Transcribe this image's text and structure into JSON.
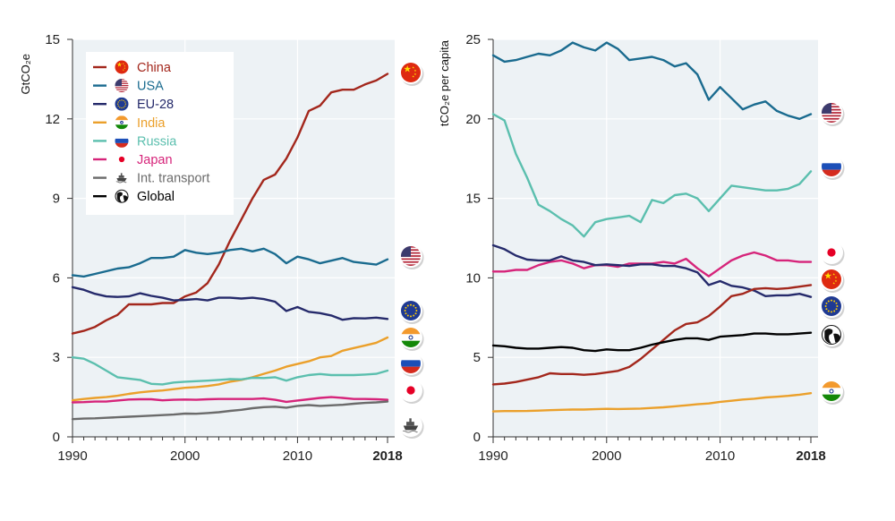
{
  "chart_data": [
    {
      "type": "line",
      "ylabel": "GtCO₂e",
      "ylim": [
        0,
        15
      ],
      "yticks": [
        "0",
        "3",
        "6",
        "9",
        "12",
        "15"
      ],
      "xlim": [
        1990,
        2018
      ],
      "xticks": [
        "1990",
        "2000",
        "2010",
        "2018"
      ],
      "legend": {
        "placement": "top-left"
      },
      "series": [
        {
          "name": "China",
          "color": "#a3271c",
          "icon": "china-flag-icon",
          "x": [
            1990,
            1991,
            1992,
            1993,
            1994,
            1995,
            1996,
            1997,
            1998,
            1999,
            2000,
            2001,
            2002,
            2003,
            2004,
            2005,
            2006,
            2007,
            2008,
            2009,
            2010,
            2011,
            2012,
            2013,
            2014,
            2015,
            2016,
            2017,
            2018
          ],
          "values": [
            3.9,
            4.0,
            4.15,
            4.4,
            4.6,
            5.0,
            5.0,
            5.0,
            5.05,
            5.05,
            5.3,
            5.45,
            5.8,
            6.5,
            7.4,
            8.2,
            9.0,
            9.7,
            9.9,
            10.5,
            11.3,
            12.3,
            12.5,
            13.0,
            13.1,
            13.1,
            13.3,
            13.45,
            13.7
          ]
        },
        {
          "name": "USA",
          "color": "#1a6b8f",
          "icon": "usa-flag-icon",
          "x": [
            1990,
            1991,
            1992,
            1993,
            1994,
            1995,
            1996,
            1997,
            1998,
            1999,
            2000,
            2001,
            2002,
            2003,
            2004,
            2005,
            2006,
            2007,
            2008,
            2009,
            2010,
            2011,
            2012,
            2013,
            2014,
            2015,
            2016,
            2017,
            2018
          ],
          "values": [
            6.1,
            6.05,
            6.15,
            6.25,
            6.35,
            6.4,
            6.55,
            6.75,
            6.75,
            6.8,
            7.05,
            6.95,
            6.9,
            6.95,
            7.05,
            7.1,
            7.0,
            7.1,
            6.9,
            6.55,
            6.8,
            6.7,
            6.55,
            6.65,
            6.75,
            6.6,
            6.55,
            6.5,
            6.7
          ]
        },
        {
          "name": "EU-28",
          "color": "#252a6b",
          "icon": "eu-flag-icon",
          "x": [
            1990,
            1991,
            1992,
            1993,
            1994,
            1995,
            1996,
            1997,
            1998,
            1999,
            2000,
            2001,
            2002,
            2003,
            2004,
            2005,
            2006,
            2007,
            2008,
            2009,
            2010,
            2011,
            2012,
            2013,
            2014,
            2015,
            2016,
            2017,
            2018
          ],
          "values": [
            5.65,
            5.55,
            5.4,
            5.3,
            5.28,
            5.3,
            5.42,
            5.32,
            5.25,
            5.15,
            5.17,
            5.2,
            5.15,
            5.25,
            5.25,
            5.22,
            5.25,
            5.2,
            5.1,
            4.75,
            4.9,
            4.72,
            4.67,
            4.58,
            4.42,
            4.48,
            4.47,
            4.5,
            4.45
          ]
        },
        {
          "name": "India",
          "color": "#eba02b",
          "icon": "india-flag-icon",
          "x": [
            1990,
            1991,
            1992,
            1993,
            1994,
            1995,
            1996,
            1997,
            1998,
            1999,
            2000,
            2001,
            2002,
            2003,
            2004,
            2005,
            2006,
            2007,
            2008,
            2009,
            2010,
            2011,
            2012,
            2013,
            2014,
            2015,
            2016,
            2017,
            2018
          ],
          "values": [
            1.38,
            1.43,
            1.47,
            1.5,
            1.55,
            1.62,
            1.68,
            1.72,
            1.75,
            1.8,
            1.85,
            1.88,
            1.92,
            1.98,
            2.08,
            2.15,
            2.25,
            2.38,
            2.5,
            2.65,
            2.75,
            2.85,
            3.0,
            3.05,
            3.25,
            3.35,
            3.45,
            3.55,
            3.75
          ]
        },
        {
          "name": "Russia",
          "color": "#5bbfae",
          "icon": "russia-flag-icon",
          "x": [
            1990,
            1991,
            1992,
            1993,
            1994,
            1995,
            1996,
            1997,
            1998,
            1999,
            2000,
            2001,
            2002,
            2003,
            2004,
            2005,
            2006,
            2007,
            2008,
            2009,
            2010,
            2011,
            2012,
            2013,
            2014,
            2015,
            2016,
            2017,
            2018
          ],
          "values": [
            3.0,
            2.95,
            2.75,
            2.5,
            2.25,
            2.2,
            2.15,
            2.0,
            1.98,
            2.05,
            2.08,
            2.1,
            2.12,
            2.15,
            2.18,
            2.17,
            2.23,
            2.22,
            2.25,
            2.12,
            2.25,
            2.33,
            2.37,
            2.33,
            2.33,
            2.33,
            2.35,
            2.38,
            2.5
          ]
        },
        {
          "name": "Japan",
          "color": "#d6247a",
          "icon": "japan-flag-icon",
          "x": [
            1990,
            1991,
            1992,
            1993,
            1994,
            1995,
            1996,
            1997,
            1998,
            1999,
            2000,
            2001,
            2002,
            2003,
            2004,
            2005,
            2006,
            2007,
            2008,
            2009,
            2010,
            2011,
            2012,
            2013,
            2014,
            2015,
            2016,
            2017,
            2018
          ],
          "values": [
            1.3,
            1.31,
            1.33,
            1.33,
            1.37,
            1.41,
            1.42,
            1.42,
            1.38,
            1.4,
            1.41,
            1.4,
            1.42,
            1.43,
            1.43,
            1.43,
            1.43,
            1.45,
            1.4,
            1.32,
            1.37,
            1.42,
            1.47,
            1.5,
            1.47,
            1.43,
            1.43,
            1.42,
            1.4
          ]
        },
        {
          "name": "Int. transport",
          "color": "#6b6b6b",
          "icon": "ship-icon",
          "x": [
            1990,
            1991,
            1992,
            1993,
            1994,
            1995,
            1996,
            1997,
            1998,
            1999,
            2000,
            2001,
            2002,
            2003,
            2004,
            2005,
            2006,
            2007,
            2008,
            2009,
            2010,
            2011,
            2012,
            2013,
            2014,
            2015,
            2016,
            2017,
            2018
          ],
          "values": [
            0.67,
            0.69,
            0.7,
            0.72,
            0.74,
            0.76,
            0.78,
            0.8,
            0.82,
            0.84,
            0.88,
            0.87,
            0.9,
            0.93,
            0.98,
            1.02,
            1.08,
            1.12,
            1.14,
            1.1,
            1.17,
            1.2,
            1.17,
            1.19,
            1.21,
            1.25,
            1.28,
            1.3,
            1.33
          ]
        },
        {
          "name": "Global",
          "color": "#000000",
          "icon": "globe-icon",
          "x": [],
          "values": []
        }
      ]
    },
    {
      "type": "line",
      "ylabel": "tCO₂e per capita",
      "ylim": [
        0,
        25
      ],
      "yticks": [
        "0",
        "5",
        "10",
        "15",
        "20",
        "25"
      ],
      "xlim": [
        1990,
        2018
      ],
      "xticks": [
        "1990",
        "2000",
        "2010",
        "2018"
      ],
      "series": [
        {
          "name": "USA",
          "color": "#1a6b8f",
          "icon": "usa-flag-icon",
          "x": [
            1990,
            1991,
            1992,
            1993,
            1994,
            1995,
            1996,
            1997,
            1998,
            1999,
            2000,
            2001,
            2002,
            2003,
            2004,
            2005,
            2006,
            2007,
            2008,
            2009,
            2010,
            2011,
            2012,
            2013,
            2014,
            2015,
            2016,
            2017,
            2018
          ],
          "values": [
            24.0,
            23.6,
            23.7,
            23.9,
            24.1,
            24.0,
            24.3,
            24.8,
            24.5,
            24.3,
            24.8,
            24.4,
            23.7,
            23.8,
            23.9,
            23.7,
            23.3,
            23.5,
            22.8,
            21.2,
            22.0,
            21.3,
            20.6,
            20.9,
            21.1,
            20.5,
            20.2,
            20.0,
            20.3
          ]
        },
        {
          "name": "Russia",
          "color": "#5bbfae",
          "icon": "russia-flag-icon",
          "x": [
            1990,
            1991,
            1992,
            1993,
            1994,
            1995,
            1996,
            1997,
            1998,
            1999,
            2000,
            2001,
            2002,
            2003,
            2004,
            2005,
            2006,
            2007,
            2008,
            2009,
            2010,
            2011,
            2012,
            2013,
            2014,
            2015,
            2016,
            2017,
            2018
          ],
          "values": [
            20.3,
            19.9,
            17.8,
            16.3,
            14.6,
            14.2,
            13.7,
            13.3,
            12.6,
            13.5,
            13.7,
            13.8,
            13.9,
            13.5,
            14.9,
            14.7,
            15.2,
            15.3,
            15.0,
            14.2,
            15.0,
            15.8,
            15.7,
            15.6,
            15.5,
            15.5,
            15.6,
            15.9,
            16.7
          ]
        },
        {
          "name": "Japan",
          "color": "#d6247a",
          "icon": "japan-flag-icon",
          "x": [
            1990,
            1991,
            1992,
            1993,
            1994,
            1995,
            1996,
            1997,
            1998,
            1999,
            2000,
            2001,
            2002,
            2003,
            2004,
            2005,
            2006,
            2007,
            2008,
            2009,
            2010,
            2011,
            2012,
            2013,
            2014,
            2015,
            2016,
            2017,
            2018
          ],
          "values": [
            10.4,
            10.4,
            10.5,
            10.5,
            10.8,
            11.0,
            11.1,
            10.9,
            10.6,
            10.8,
            10.8,
            10.7,
            10.9,
            10.9,
            10.9,
            11.0,
            10.9,
            11.2,
            10.6,
            10.1,
            10.6,
            11.1,
            11.4,
            11.6,
            11.4,
            11.1,
            11.1,
            11.0,
            11.0
          ]
        },
        {
          "name": "EU-28",
          "color": "#252a6b",
          "icon": "eu-flag-icon",
          "x": [
            1990,
            1991,
            1992,
            1993,
            1994,
            1995,
            1996,
            1997,
            1998,
            1999,
            2000,
            2001,
            2002,
            2003,
            2004,
            2005,
            2006,
            2007,
            2008,
            2009,
            2010,
            2011,
            2012,
            2013,
            2014,
            2015,
            2016,
            2017,
            2018
          ],
          "values": [
            12.05,
            11.8,
            11.4,
            11.15,
            11.1,
            11.1,
            11.35,
            11.1,
            11.0,
            10.8,
            10.85,
            10.8,
            10.75,
            10.85,
            10.85,
            10.75,
            10.75,
            10.6,
            10.35,
            9.55,
            9.8,
            9.5,
            9.4,
            9.2,
            8.85,
            8.9,
            8.9,
            9.0,
            8.8
          ]
        },
        {
          "name": "China",
          "color": "#a3271c",
          "icon": "china-flag-icon",
          "x": [
            1990,
            1991,
            1992,
            1993,
            1994,
            1995,
            1996,
            1997,
            1998,
            1999,
            2000,
            2001,
            2002,
            2003,
            2004,
            2005,
            2006,
            2007,
            2008,
            2009,
            2010,
            2011,
            2012,
            2013,
            2014,
            2015,
            2016,
            2017,
            2018
          ],
          "values": [
            3.3,
            3.35,
            3.45,
            3.6,
            3.75,
            4.0,
            3.95,
            3.95,
            3.9,
            3.95,
            4.05,
            4.15,
            4.4,
            4.9,
            5.5,
            6.1,
            6.7,
            7.1,
            7.2,
            7.6,
            8.2,
            8.85,
            9.0,
            9.3,
            9.35,
            9.3,
            9.35,
            9.45,
            9.55
          ]
        },
        {
          "name": "Global",
          "color": "#000000",
          "icon": "globe-icon",
          "x": [
            1990,
            1991,
            1992,
            1993,
            1994,
            1995,
            1996,
            1997,
            1998,
            1999,
            2000,
            2001,
            2002,
            2003,
            2004,
            2005,
            2006,
            2007,
            2008,
            2009,
            2010,
            2011,
            2012,
            2013,
            2014,
            2015,
            2016,
            2017,
            2018
          ],
          "values": [
            5.75,
            5.7,
            5.6,
            5.55,
            5.55,
            5.6,
            5.65,
            5.6,
            5.45,
            5.4,
            5.5,
            5.45,
            5.45,
            5.6,
            5.8,
            5.95,
            6.1,
            6.2,
            6.2,
            6.1,
            6.3,
            6.35,
            6.4,
            6.5,
            6.5,
            6.45,
            6.45,
            6.5,
            6.55
          ]
        },
        {
          "name": "India",
          "color": "#eba02b",
          "icon": "india-flag-icon",
          "x": [
            1990,
            1991,
            1992,
            1993,
            1994,
            1995,
            1996,
            1997,
            1998,
            1999,
            2000,
            2001,
            2002,
            2003,
            2004,
            2005,
            2006,
            2007,
            2008,
            2009,
            2010,
            2011,
            2012,
            2013,
            2014,
            2015,
            2016,
            2017,
            2018
          ],
          "values": [
            1.6,
            1.62,
            1.62,
            1.63,
            1.65,
            1.68,
            1.7,
            1.72,
            1.72,
            1.74,
            1.76,
            1.75,
            1.76,
            1.78,
            1.82,
            1.86,
            1.92,
            1.98,
            2.05,
            2.1,
            2.2,
            2.27,
            2.35,
            2.4,
            2.48,
            2.52,
            2.58,
            2.65,
            2.75
          ]
        }
      ]
    }
  ]
}
